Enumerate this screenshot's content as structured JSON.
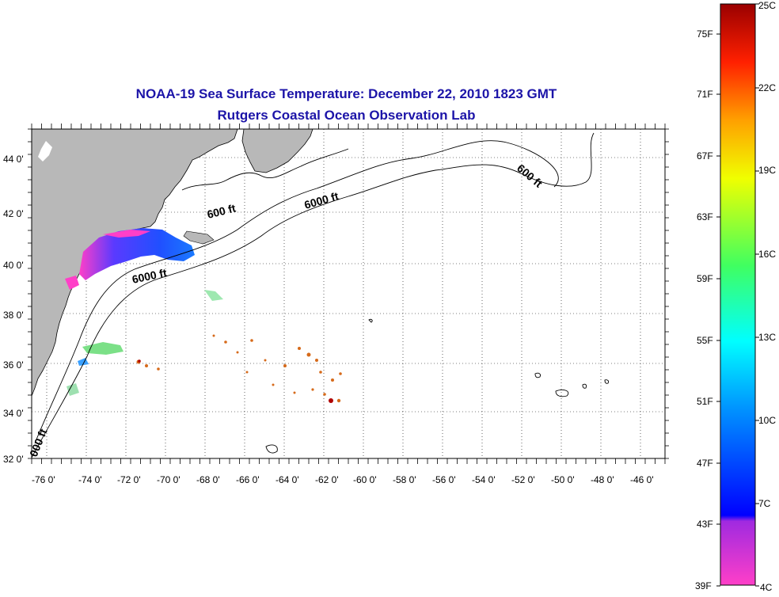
{
  "map": {
    "title": "NOAA-19 Sea Surface Temperature:  December 22, 2010 1823 GMT",
    "subtitle": "Rutgers Coastal Ocean Observation Lab",
    "lon_labels": [
      "-76 0'",
      "-74 0'",
      "-72 0'",
      "-70 0'",
      "-68 0'",
      "-66 0'",
      "-64 0'",
      "-62 0'",
      "-60 0'",
      "-58 0'",
      "-56 0'",
      "-54 0'",
      "-52 0'",
      "-50 0'",
      "-48 0'",
      "-46 0'"
    ],
    "lat_labels": [
      "44 0'",
      "42 0'",
      "40 0'",
      "38 0'",
      "36 0'",
      "34 0'",
      "32 0'"
    ],
    "contour_labels": [
      "600 ft",
      "6000 ft",
      "600 ft",
      "6000 ft",
      "000 ft"
    ],
    "colors": {
      "land": "#b8b8b8",
      "title": "#1c14a8"
    }
  },
  "colorbar": {
    "fahrenheit_labels": [
      "75F",
      "71F",
      "67F",
      "63F",
      "59F",
      "55F",
      "51F",
      "47F",
      "43F",
      "39F"
    ],
    "celsius_labels": [
      "25C",
      "22C",
      "19C",
      "16C",
      "13C",
      "10C",
      "7C",
      "4C"
    ]
  }
}
